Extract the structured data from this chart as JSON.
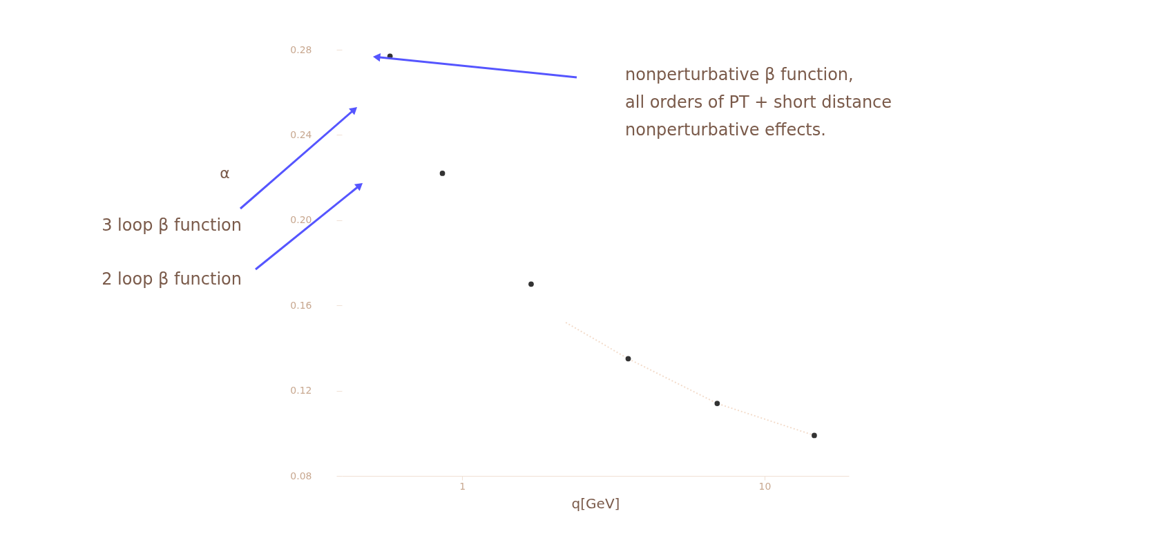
{
  "chart_data": {
    "type": "scatter",
    "xlabel": "q[GeV]",
    "ylabel": "α",
    "log": "x",
    "xlim": [
      0.4,
      19
    ],
    "xticks": [
      1,
      10
    ],
    "ylim": [
      0.08,
      0.28
    ],
    "yticks": [
      0.08,
      0.12,
      0.16,
      {
        "value": 0.2,
        "label": "0.20"
      },
      0.24,
      0.28
    ],
    "grid": false,
    "marker": "circle",
    "series": [
      {
        "color": "#333333",
        "x": [
          0.577,
          0.86,
          1.69,
          3.54,
          6.97,
          14.6
        ],
        "values": [
          0.277,
          0.222,
          0.17,
          0.135,
          0.114,
          0.099
        ]
      },
      {
        "type": "line",
        "color": "#f3dccb",
        "line_style": "dotted",
        "marker": "none",
        "x": [
          2.2,
          3.54,
          6.97,
          14.6
        ],
        "values": [
          0.152,
          0.135,
          0.114,
          0.099
        ]
      }
    ],
    "annotations": [
      "nonperturbative β function,\nall orders of PT + short distance\nnonperturbative effects.",
      "3 loop β function",
      "2 loop β function"
    ]
  }
}
